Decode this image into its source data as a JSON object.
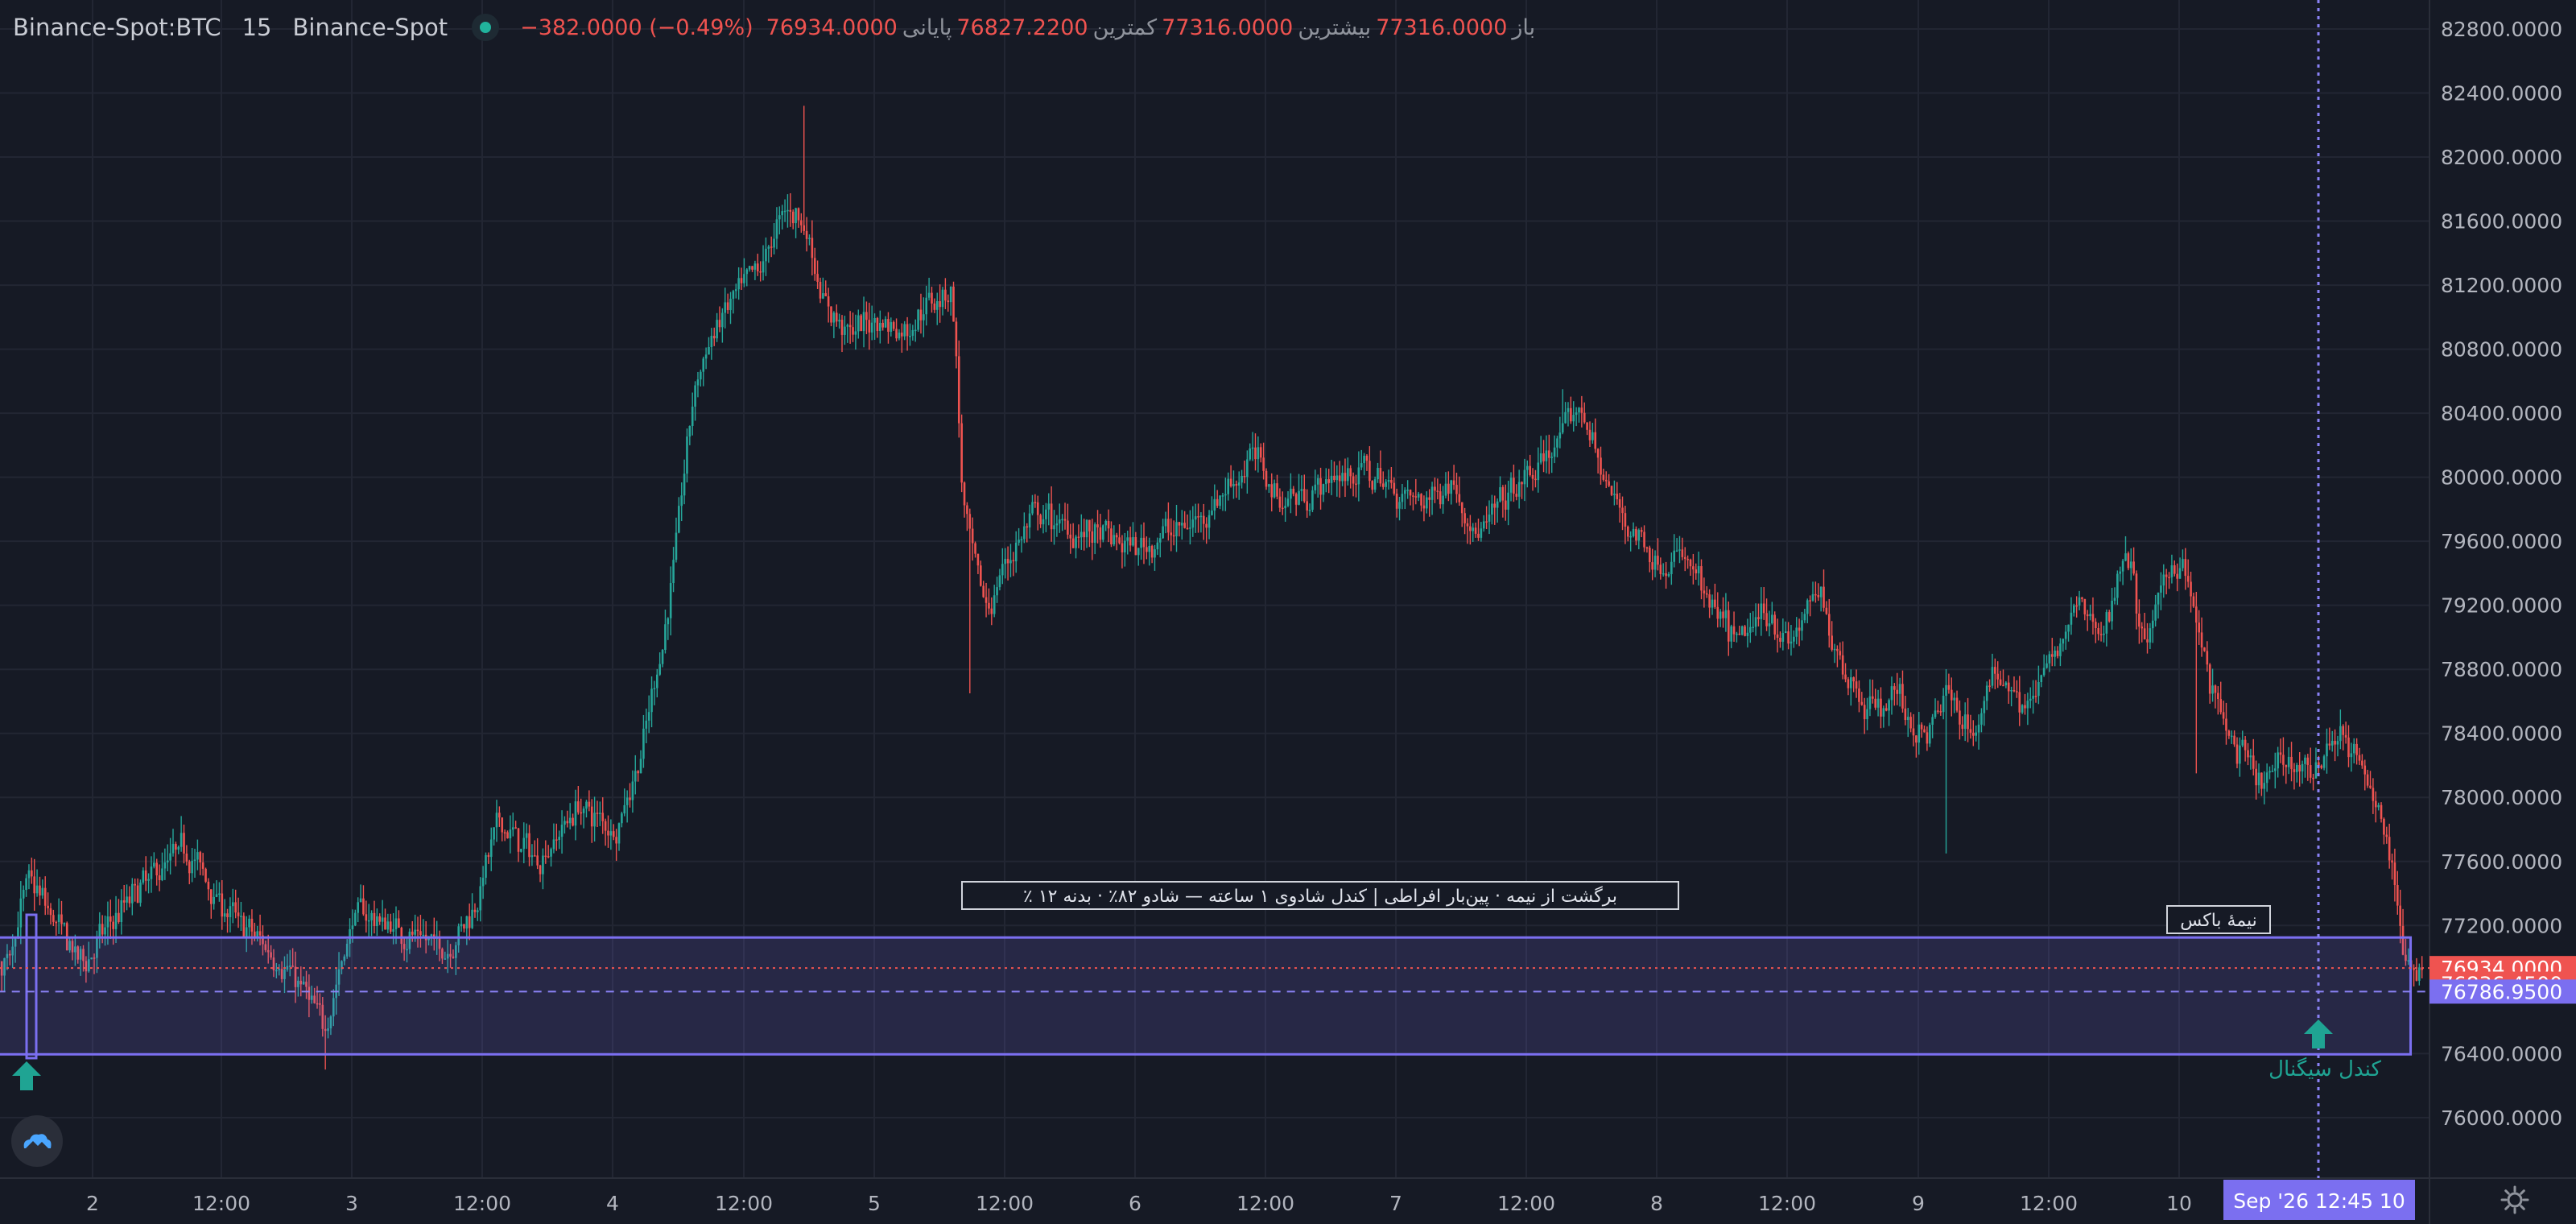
{
  "header": {
    "symbol": "Binance-Spot:BTC",
    "interval": "15",
    "exchange": "Binance-Spot",
    "ohlc": [
      {
        "label": "باز",
        "value": "77316.0000"
      },
      {
        "label": "بیشترین",
        "value": "77316.0000"
      },
      {
        "label": "کمترین",
        "value": "76827.2200"
      },
      {
        "label": "پایانی",
        "value": "76934.0000"
      },
      {
        "label": "",
        "value": "−382.0000 (−0.49%)"
      }
    ]
  },
  "price_axis": {
    "ticks": [
      "82800.0000",
      "82400.0000",
      "82000.0000",
      "81600.0000",
      "81200.0000",
      "80800.0000",
      "80400.0000",
      "80000.0000",
      "79600.0000",
      "79200.0000",
      "78800.0000",
      "78400.0000",
      "78000.0000",
      "77600.0000",
      "77200.0000",
      "76400.0000",
      "76000.0000"
    ],
    "badges": [
      {
        "value": "76934.0000",
        "color": "#ef5350"
      },
      {
        "value": "76836.4500",
        "color": "#ef5350"
      },
      {
        "value": "76786.9500",
        "color": "#7b6ff0"
      }
    ]
  },
  "time_axis": {
    "ticks": [
      {
        "x": 115,
        "label": "2"
      },
      {
        "x": 275,
        "label": "12:00"
      },
      {
        "x": 437,
        "label": "3"
      },
      {
        "x": 599,
        "label": "12:00"
      },
      {
        "x": 761,
        "label": "4"
      },
      {
        "x": 924,
        "label": "12:00"
      },
      {
        "x": 1086,
        "label": "5"
      },
      {
        "x": 1248,
        "label": "12:00"
      },
      {
        "x": 1410,
        "label": "6"
      },
      {
        "x": 1572,
        "label": "12:00"
      },
      {
        "x": 1734,
        "label": "7"
      },
      {
        "x": 1896,
        "label": "12:00"
      },
      {
        "x": 2058,
        "label": "8"
      },
      {
        "x": 2220,
        "label": "12:00"
      },
      {
        "x": 2383,
        "label": "9"
      },
      {
        "x": 2545,
        "label": "12:00"
      },
      {
        "x": 2707,
        "label": "10"
      }
    ],
    "cursor_label": "Sep '26   12:45 10"
  },
  "annotations": {
    "main_label": "٪ برگشت از نیمه · پین‌بار افراطی | کندل شادوی ۱ ساعته — شادو ۸۲٪ · بدنه ۱۲",
    "half_box_label": "نیمهٔ باکس",
    "signal_label": "کندل سیگنال"
  },
  "colors": {
    "up": "#26a69a",
    "down": "#ef5350",
    "box": "#7b6ff0",
    "signal": "#1fa493"
  },
  "icons": {
    "logo": "cloud-mountain-icon",
    "settings": "gear-icon"
  },
  "chart_data": {
    "type": "candlestick",
    "title": "Binance-Spot:BTC 15",
    "xlabel": "",
    "ylabel": "",
    "ylim": [
      75670,
      83020
    ],
    "x_range_days": [
      1.35,
      10.93
    ],
    "waypoints": [
      [
        1.35,
        77900
      ],
      [
        1.5,
        77400
      ],
      [
        1.65,
        76900
      ],
      [
        1.75,
        77500
      ],
      [
        1.95,
        76950
      ],
      [
        2.15,
        77400
      ],
      [
        2.35,
        77700
      ],
      [
        2.5,
        77300
      ],
      [
        2.7,
        77000
      ],
      [
        2.8,
        76800
      ],
      [
        2.88,
        76550
      ],
      [
        3.0,
        77300
      ],
      [
        3.2,
        77150
      ],
      [
        3.35,
        77050
      ],
      [
        3.45,
        77300
      ],
      [
        3.55,
        77850
      ],
      [
        3.7,
        77600
      ],
      [
        3.85,
        77950
      ],
      [
        4.0,
        77800
      ],
      [
        4.1,
        78300
      ],
      [
        4.2,
        79200
      ],
      [
        4.3,
        80600
      ],
      [
        4.4,
        81000
      ],
      [
        4.55,
        81300
      ],
      [
        4.65,
        81700
      ],
      [
        4.72,
        81600
      ],
      [
        4.8,
        81050
      ],
      [
        4.9,
        80900
      ],
      [
        5.0,
        81000
      ],
      [
        5.1,
        80900
      ],
      [
        5.2,
        81100
      ],
      [
        5.29,
        81200
      ],
      [
        5.33,
        79700
      ],
      [
        5.42,
        79150
      ],
      [
        5.5,
        79500
      ],
      [
        5.6,
        79750
      ],
      [
        5.8,
        79650
      ],
      [
        6.0,
        79550
      ],
      [
        6.1,
        79650
      ],
      [
        6.2,
        79700
      ],
      [
        6.35,
        79950
      ],
      [
        6.45,
        80150
      ],
      [
        6.55,
        79850
      ],
      [
        6.7,
        79950
      ],
      [
        6.85,
        80050
      ],
      [
        7.0,
        79900
      ],
      [
        7.1,
        79850
      ],
      [
        7.2,
        80000
      ],
      [
        7.3,
        79600
      ],
      [
        7.4,
        79850
      ],
      [
        7.5,
        80000
      ],
      [
        7.6,
        80200
      ],
      [
        7.7,
        80450
      ],
      [
        7.8,
        79900
      ],
      [
        7.9,
        79650
      ],
      [
        8.0,
        79450
      ],
      [
        8.1,
        79500
      ],
      [
        8.2,
        79150
      ],
      [
        8.3,
        78950
      ],
      [
        8.4,
        79200
      ],
      [
        8.5,
        78950
      ],
      [
        8.6,
        79300
      ],
      [
        8.7,
        78800
      ],
      [
        8.8,
        78550
      ],
      [
        8.9,
        78650
      ],
      [
        9.0,
        78350
      ],
      [
        9.1,
        78650
      ],
      [
        9.2,
        78400
      ],
      [
        9.3,
        78850
      ],
      [
        9.4,
        78550
      ],
      [
        9.5,
        78850
      ],
      [
        9.6,
        79200
      ],
      [
        9.7,
        79000
      ],
      [
        9.78,
        79650
      ],
      [
        9.85,
        78900
      ],
      [
        9.95,
        79450
      ],
      [
        10.0,
        79500
      ],
      [
        10.1,
        78700
      ],
      [
        10.2,
        78300
      ],
      [
        10.3,
        78050
      ],
      [
        10.4,
        78250
      ],
      [
        10.5,
        78150
      ],
      [
        10.6,
        78450
      ],
      [
        10.7,
        78100
      ],
      [
        10.78,
        77800
      ],
      [
        10.85,
        76950
      ],
      [
        10.93,
        76950
      ]
    ],
    "spikes": [
      {
        "day": 4.72,
        "high": 82320
      },
      {
        "day": 5.36,
        "low": 78650
      },
      {
        "day": 7.63,
        "high": 80550
      },
      {
        "day": 9.1,
        "low": 77650
      },
      {
        "day": 10.06,
        "low": 78150
      },
      {
        "day": 2.89,
        "low": 76300
      }
    ],
    "box": {
      "day_start": 1.37,
      "day_end": 10.87,
      "top": 77125,
      "bottom": 76395,
      "mid": 76787
    },
    "last_price": 76934.0
  }
}
